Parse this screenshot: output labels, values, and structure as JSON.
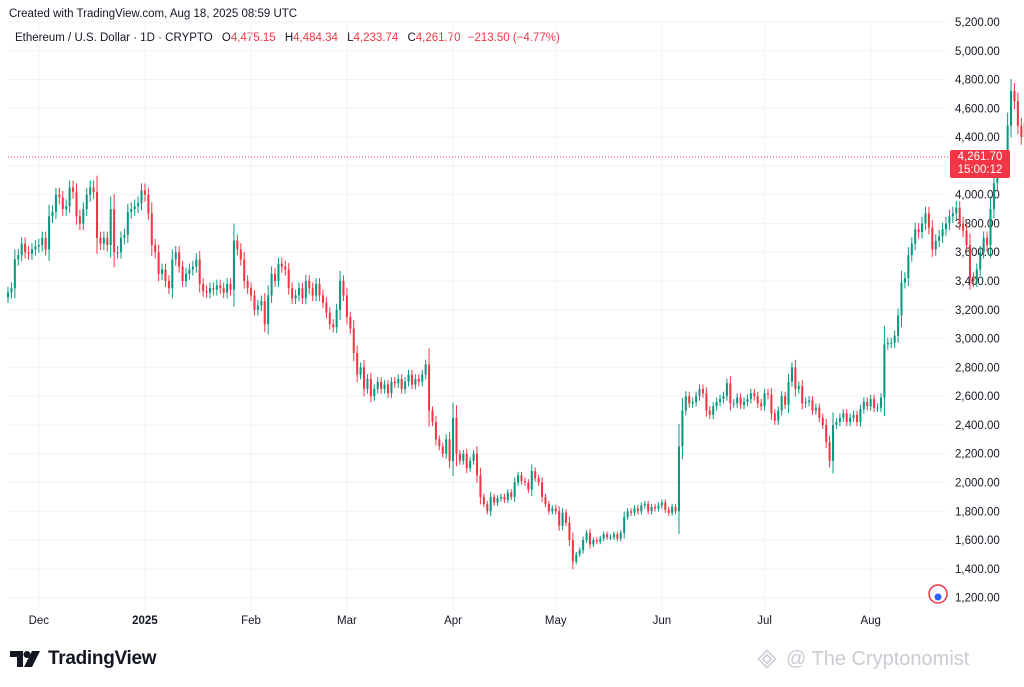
{
  "header": {
    "created": "Created with TradingView.com, Aug 18, 2025 08:59 UTC"
  },
  "legend": {
    "symbol": "Ethereum / U.S. Dollar · 1D · CRYPTO",
    "o_label": "O",
    "o_value": "4,475.15",
    "h_label": "H",
    "h_value": "4,484.34",
    "l_label": "L",
    "l_value": "4,233.74",
    "c_label": "C",
    "c_value": "4,261.70",
    "change": "−213.50 (−4.77%)"
  },
  "price_badge": {
    "price": "4,261.70",
    "countdown": "15:00:12"
  },
  "footer": {
    "brand": "TradingView",
    "watermark": "@ The Cryptonomist"
  },
  "colors": {
    "up": "#089981",
    "down": "#f23645",
    "grid": "#f0f3fa",
    "text": "#131722"
  },
  "chart_data": {
    "type": "candlestick",
    "title": "Ethereum / U.S. Dollar · 1D · CRYPTO",
    "ylim": [
      1100,
      5200
    ],
    "y_ticks": [
      1200,
      1400,
      1600,
      1800,
      2000,
      2200,
      2400,
      2600,
      2800,
      3000,
      3200,
      3400,
      3600,
      3800,
      4000,
      4200,
      4400,
      4600,
      4800,
      5000,
      5200
    ],
    "y_tick_labels": [
      "1,200.00",
      "1,400.00",
      "1,600.00",
      "1,800.00",
      "2,000.00",
      "2,200.00",
      "2,400.00",
      "2,600.00",
      "2,800.00",
      "3,000.00",
      "3,200.00",
      "3,400.00",
      "3,600.00",
      "3,800.00",
      "4,000.00",
      "4,200.00",
      "4,400.00",
      "4,600.00",
      "4,800.00",
      "5,000.00",
      "5,200.00"
    ],
    "x_range": [
      "2024-11-22",
      "2025-08-23"
    ],
    "x_ticks": [
      {
        "date": "2024-12-01",
        "label": "Dec",
        "bold": false
      },
      {
        "date": "2025-01-01",
        "label": "2025",
        "bold": true
      },
      {
        "date": "2025-02-01",
        "label": "Feb",
        "bold": false
      },
      {
        "date": "2025-03-01",
        "label": "Mar",
        "bold": false
      },
      {
        "date": "2025-04-01",
        "label": "Apr",
        "bold": false
      },
      {
        "date": "2025-05-01",
        "label": "May",
        "bold": false
      },
      {
        "date": "2025-06-01",
        "label": "Jun",
        "bold": false
      },
      {
        "date": "2025-07-01",
        "label": "Jul",
        "bold": false
      },
      {
        "date": "2025-08-01",
        "label": "Aug",
        "bold": false
      }
    ],
    "last_price": 4261.7,
    "close_series_start": "2024-11-22",
    "close_series_note": "approximate daily closes, one value per calendar day",
    "closes": [
      3320,
      3350,
      3550,
      3580,
      3660,
      3600,
      3590,
      3620,
      3640,
      3650,
      3700,
      3620,
      3850,
      3880,
      4000,
      3980,
      3900,
      3920,
      4050,
      4020,
      3850,
      3800,
      3900,
      4000,
      4050,
      4020,
      3700,
      3660,
      3700,
      3650,
      3900,
      3600,
      3600,
      3700,
      3720,
      3880,
      3900,
      3920,
      3940,
      4030,
      4000,
      3870,
      3650,
      3600,
      3450,
      3480,
      3400,
      3350,
      3550,
      3600,
      3500,
      3400,
      3450,
      3480,
      3500,
      3550,
      3380,
      3330,
      3320,
      3350,
      3340,
      3370,
      3350,
      3320,
      3380,
      3340,
      3680,
      3620,
      3550,
      3400,
      3350,
      3300,
      3200,
      3230,
      3260,
      3100,
      3300,
      3450,
      3400,
      3520,
      3500,
      3480,
      3350,
      3280,
      3300,
      3350,
      3280,
      3400,
      3350,
      3300,
      3380,
      3300,
      3250,
      3180,
      3100,
      3080,
      3200,
      3400,
      3300,
      3150,
      3070,
      2900,
      2750,
      2800,
      2650,
      2720,
      2600,
      2650,
      2700,
      2650,
      2680,
      2620,
      2700,
      2690,
      2720,
      2650,
      2700,
      2750,
      2680,
      2720,
      2700,
      2750,
      2820,
      2500,
      2420,
      2300,
      2250,
      2200,
      2300,
      2150,
      2450,
      2200,
      2150,
      2200,
      2100,
      2150,
      2200,
      2050,
      1900,
      1850,
      1800,
      1900,
      1860,
      1890,
      1900,
      1880,
      1930,
      1900,
      2000,
      2050,
      2010,
      2000,
      1950,
      2080,
      2030,
      2000,
      1900,
      1850,
      1800,
      1820,
      1800,
      1700,
      1790,
      1720,
      1600,
      1450,
      1500,
      1530,
      1600,
      1650,
      1570,
      1600,
      1590,
      1610,
      1640,
      1620,
      1620,
      1640,
      1610,
      1650,
      1760,
      1800,
      1790,
      1820,
      1800,
      1840,
      1850,
      1800,
      1830,
      1820,
      1840,
      1860,
      1810,
      1790,
      1830,
      1800,
      2250,
      2500,
      2600,
      2550,
      2560,
      2600,
      2650,
      2620,
      2500,
      2470,
      2530,
      2560,
      2580,
      2600,
      2690,
      2550,
      2550,
      2590,
      2540,
      2560,
      2580,
      2620,
      2600,
      2550,
      2530,
      2620,
      2610,
      2480,
      2430,
      2500,
      2600,
      2540,
      2700,
      2800,
      2650,
      2670,
      2550,
      2560,
      2570,
      2500,
      2520,
      2450,
      2400,
      2280,
      2150,
      2400,
      2420,
      2450,
      2480,
      2420,
      2450,
      2470,
      2420,
      2510,
      2560,
      2530,
      2580,
      2520,
      2520,
      2590,
      2960,
      2970,
      2970,
      3020,
      3160,
      3390,
      3420,
      3580,
      3660,
      3760,
      3740,
      3800,
      3870,
      3770,
      3620,
      3680,
      3710,
      3760,
      3800,
      3850,
      3870,
      3910,
      3800,
      3750,
      3650,
      3420,
      3400,
      3480,
      3600,
      3700,
      3650,
      3900,
      4080,
      4200,
      4250,
      4220,
      4480,
      4720,
      4650,
      4480,
      4400,
      4500,
      4440,
      4262
    ]
  }
}
